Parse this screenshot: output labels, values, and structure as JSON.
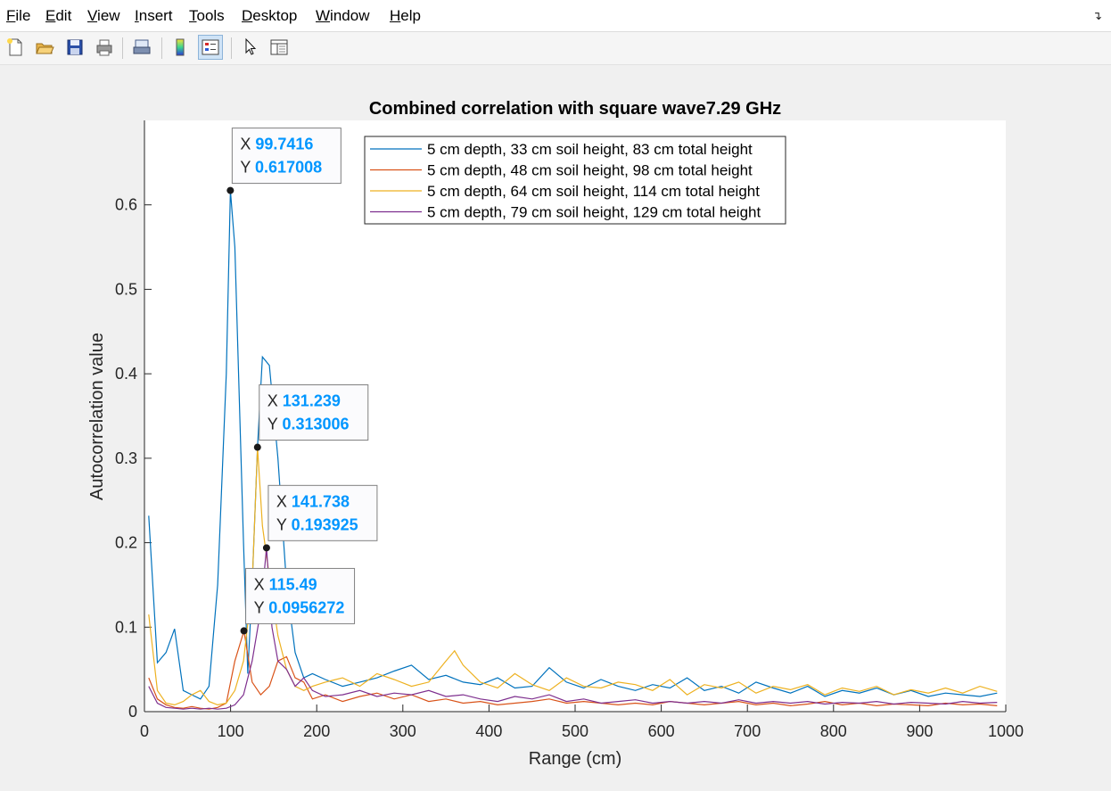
{
  "menu": [
    "File",
    "Edit",
    "View",
    "Insert",
    "Tools",
    "Desktop",
    "Window",
    "Help"
  ],
  "menu_underline": [
    0,
    0,
    0,
    0,
    0,
    0,
    0,
    0
  ],
  "toolbar_icons": [
    "new-figure-icon",
    "open-file-icon",
    "save-icon",
    "print-icon",
    "print-preview-icon",
    "colorbar-icon",
    "legend-icon",
    "select-pointer-icon",
    "property-inspector-icon"
  ],
  "colors": {
    "series": [
      "#0072bd",
      "#d95319",
      "#edb120",
      "#7e2f8e"
    ],
    "datatip_value": "#0096ff"
  },
  "chart_data": {
    "type": "line",
    "title": "Combined correlation with square wave7.29 GHz",
    "xlabel": "Range (cm)",
    "ylabel": "Autocorrelation value",
    "xlim": [
      0,
      1000
    ],
    "ylim": [
      0,
      0.7
    ],
    "xticks": [
      0,
      100,
      200,
      300,
      400,
      500,
      600,
      700,
      800,
      900,
      1000
    ],
    "yticks": [
      0,
      0.1,
      0.2,
      0.3,
      0.4,
      0.5,
      0.6
    ],
    "ytick_labels": [
      "0",
      "0.1",
      "0.2",
      "0.3",
      "0.4",
      "0.5",
      "0.6"
    ],
    "legend_position": "top-right",
    "series": [
      {
        "name": "5 cm depth, 33 cm soil height, 83 cm total height",
        "x": [
          5,
          15,
          25,
          35,
          45,
          55,
          65,
          75,
          85,
          95,
          99.7416,
          105,
          115,
          120,
          125,
          131.239,
          137,
          145,
          155,
          165,
          175,
          185,
          195,
          210,
          230,
          250,
          270,
          290,
          310,
          330,
          350,
          370,
          390,
          410,
          430,
          450,
          470,
          490,
          510,
          530,
          550,
          570,
          590,
          610,
          630,
          650,
          670,
          690,
          710,
          730,
          750,
          770,
          790,
          810,
          830,
          850,
          870,
          890,
          910,
          930,
          950,
          970,
          990
        ],
        "y": [
          0.232,
          0.058,
          0.07,
          0.098,
          0.025,
          0.02,
          0.015,
          0.03,
          0.15,
          0.4,
          0.617,
          0.55,
          0.2,
          0.045,
          0.15,
          0.313,
          0.42,
          0.41,
          0.3,
          0.15,
          0.07,
          0.04,
          0.045,
          0.038,
          0.03,
          0.035,
          0.04,
          0.048,
          0.055,
          0.038,
          0.043,
          0.035,
          0.032,
          0.04,
          0.028,
          0.03,
          0.052,
          0.035,
          0.028,
          0.038,
          0.03,
          0.025,
          0.032,
          0.028,
          0.04,
          0.025,
          0.03,
          0.022,
          0.035,
          0.028,
          0.022,
          0.03,
          0.018,
          0.025,
          0.022,
          0.028,
          0.02,
          0.025,
          0.018,
          0.022,
          0.02,
          0.018,
          0.022
        ]
      },
      {
        "name": "5 cm depth, 48 cm soil height, 98 cm total height",
        "x": [
          5,
          15,
          25,
          35,
          45,
          55,
          65,
          75,
          85,
          95,
          105,
          115.49,
          125,
          135,
          145,
          155,
          165,
          175,
          185,
          195,
          210,
          230,
          250,
          270,
          290,
          310,
          330,
          350,
          370,
          390,
          410,
          430,
          450,
          470,
          490,
          510,
          530,
          550,
          570,
          590,
          610,
          630,
          650,
          670,
          690,
          710,
          730,
          750,
          770,
          790,
          810,
          830,
          850,
          870,
          890,
          910,
          930,
          950,
          970,
          990
        ],
        "y": [
          0.04,
          0.015,
          0.008,
          0.005,
          0.004,
          0.006,
          0.004,
          0.003,
          0.005,
          0.01,
          0.06,
          0.0956,
          0.035,
          0.02,
          0.03,
          0.06,
          0.065,
          0.04,
          0.035,
          0.015,
          0.02,
          0.012,
          0.018,
          0.022,
          0.015,
          0.02,
          0.012,
          0.015,
          0.01,
          0.012,
          0.008,
          0.01,
          0.012,
          0.015,
          0.01,
          0.012,
          0.01,
          0.008,
          0.01,
          0.008,
          0.012,
          0.01,
          0.008,
          0.01,
          0.012,
          0.008,
          0.01,
          0.007,
          0.009,
          0.012,
          0.008,
          0.01,
          0.007,
          0.009,
          0.008,
          0.007,
          0.01,
          0.008,
          0.009,
          0.007
        ]
      },
      {
        "name": "5 cm depth, 64 cm soil height, 114 cm total height",
        "x": [
          5,
          15,
          25,
          35,
          45,
          55,
          65,
          75,
          85,
          95,
          105,
          115,
          125,
          131.239,
          137,
          145,
          155,
          165,
          175,
          185,
          195,
          210,
          230,
          250,
          270,
          290,
          310,
          330,
          350,
          360,
          370,
          390,
          410,
          430,
          450,
          470,
          490,
          510,
          530,
          550,
          570,
          590,
          610,
          630,
          650,
          670,
          690,
          710,
          730,
          750,
          770,
          790,
          810,
          830,
          850,
          870,
          890,
          910,
          930,
          950,
          970,
          990
        ],
        "y": [
          0.115,
          0.025,
          0.01,
          0.008,
          0.012,
          0.02,
          0.025,
          0.012,
          0.008,
          0.01,
          0.025,
          0.06,
          0.15,
          0.313,
          0.22,
          0.16,
          0.09,
          0.05,
          0.03,
          0.025,
          0.03,
          0.035,
          0.04,
          0.03,
          0.045,
          0.038,
          0.03,
          0.035,
          0.06,
          0.072,
          0.055,
          0.035,
          0.028,
          0.045,
          0.032,
          0.025,
          0.04,
          0.03,
          0.028,
          0.035,
          0.032,
          0.025,
          0.038,
          0.02,
          0.032,
          0.028,
          0.035,
          0.022,
          0.03,
          0.026,
          0.032,
          0.02,
          0.028,
          0.024,
          0.03,
          0.02,
          0.026,
          0.022,
          0.028,
          0.022,
          0.03,
          0.024
        ]
      },
      {
        "name": "5 cm depth, 79 cm soil height, 129 cm total height",
        "x": [
          5,
          15,
          25,
          35,
          45,
          55,
          65,
          75,
          85,
          95,
          105,
          115,
          125,
          135,
          141.738,
          148,
          155,
          165,
          175,
          185,
          195,
          210,
          230,
          250,
          270,
          290,
          310,
          330,
          350,
          370,
          390,
          410,
          430,
          450,
          470,
          490,
          510,
          530,
          550,
          570,
          590,
          610,
          630,
          650,
          670,
          690,
          710,
          730,
          750,
          770,
          790,
          810,
          830,
          850,
          870,
          890,
          910,
          930,
          950,
          970,
          990
        ],
        "y": [
          0.03,
          0.01,
          0.005,
          0.004,
          0.003,
          0.004,
          0.003,
          0.004,
          0.003,
          0.004,
          0.008,
          0.02,
          0.06,
          0.12,
          0.1939,
          0.1,
          0.06,
          0.05,
          0.03,
          0.04,
          0.025,
          0.018,
          0.02,
          0.025,
          0.018,
          0.022,
          0.02,
          0.025,
          0.018,
          0.02,
          0.015,
          0.012,
          0.018,
          0.015,
          0.02,
          0.012,
          0.015,
          0.01,
          0.012,
          0.014,
          0.01,
          0.012,
          0.01,
          0.012,
          0.01,
          0.014,
          0.01,
          0.012,
          0.01,
          0.012,
          0.009,
          0.011,
          0.01,
          0.012,
          0.009,
          0.011,
          0.01,
          0.009,
          0.012,
          0.01,
          0.011
        ]
      }
    ],
    "datatips": [
      {
        "x": 99.7416,
        "y": 0.617008,
        "x_label": "99.7416",
        "y_label": "0.617008",
        "anchor": "right-above"
      },
      {
        "x": 131.239,
        "y": 0.313006,
        "x_label": "131.239",
        "y_label": "0.313006",
        "anchor": "right-above"
      },
      {
        "x": 141.738,
        "y": 0.193925,
        "x_label": "141.738",
        "y_label": "0.193925",
        "anchor": "right-above"
      },
      {
        "x": 115.49,
        "y": 0.0956272,
        "x_label": "115.49",
        "y_label": "0.0956272",
        "anchor": "right-above"
      }
    ]
  }
}
